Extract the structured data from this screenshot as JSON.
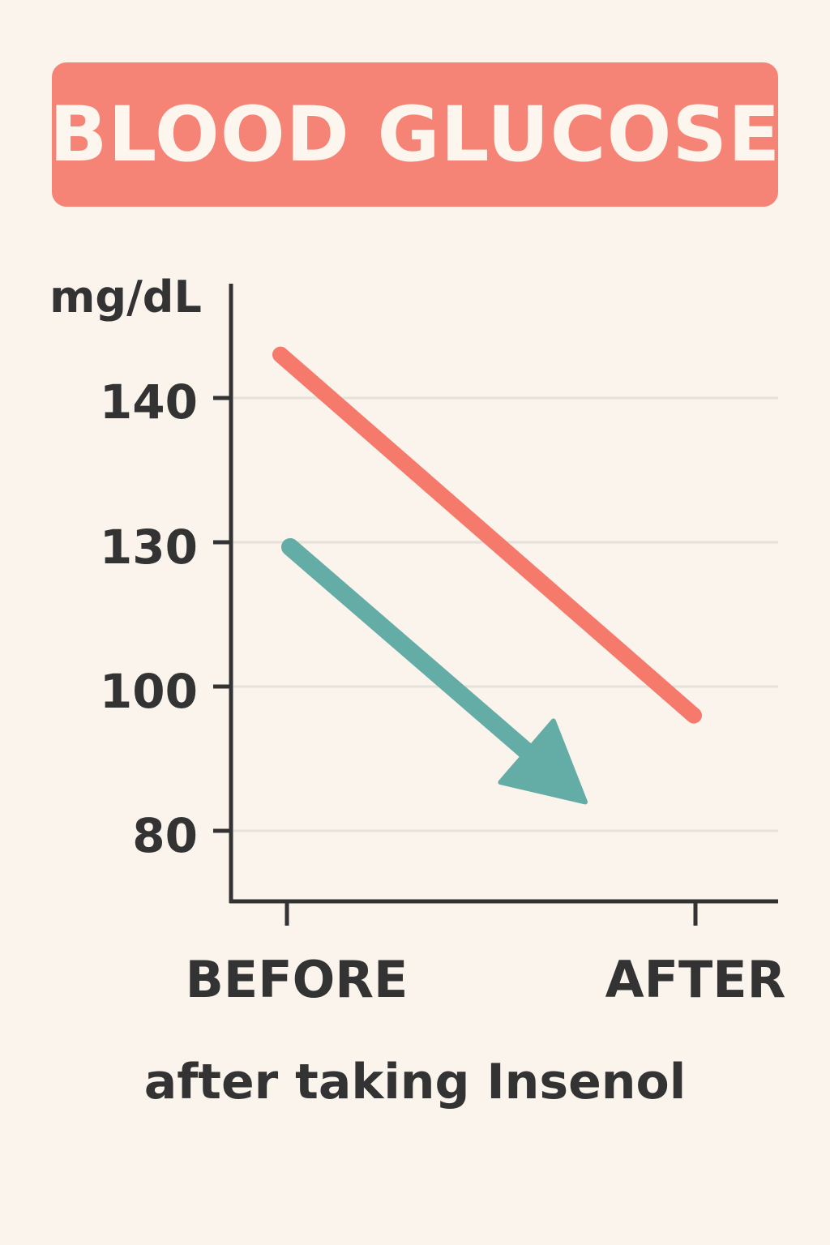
{
  "chart_data": {
    "type": "line",
    "title": "BLOOD GLUCOSE",
    "ylabel": "mg/dL",
    "xlabel": "",
    "categories": [
      "BEFORE",
      "AFTER"
    ],
    "y_ticks": [
      "140",
      "130",
      "100",
      "80"
    ],
    "grid": true,
    "series": [
      {
        "values": [
          143,
          96
        ],
        "color": "#f57a6c",
        "marker": "line"
      },
      {
        "values": [
          129,
          84
        ],
        "color": "#64aca6",
        "marker": "arrow"
      }
    ]
  },
  "caption": "after taking Insenol",
  "colors": {
    "background": "#fbf4ec",
    "banner": "#f68476",
    "axis": "#333333",
    "grid": "#e6e1da"
  }
}
